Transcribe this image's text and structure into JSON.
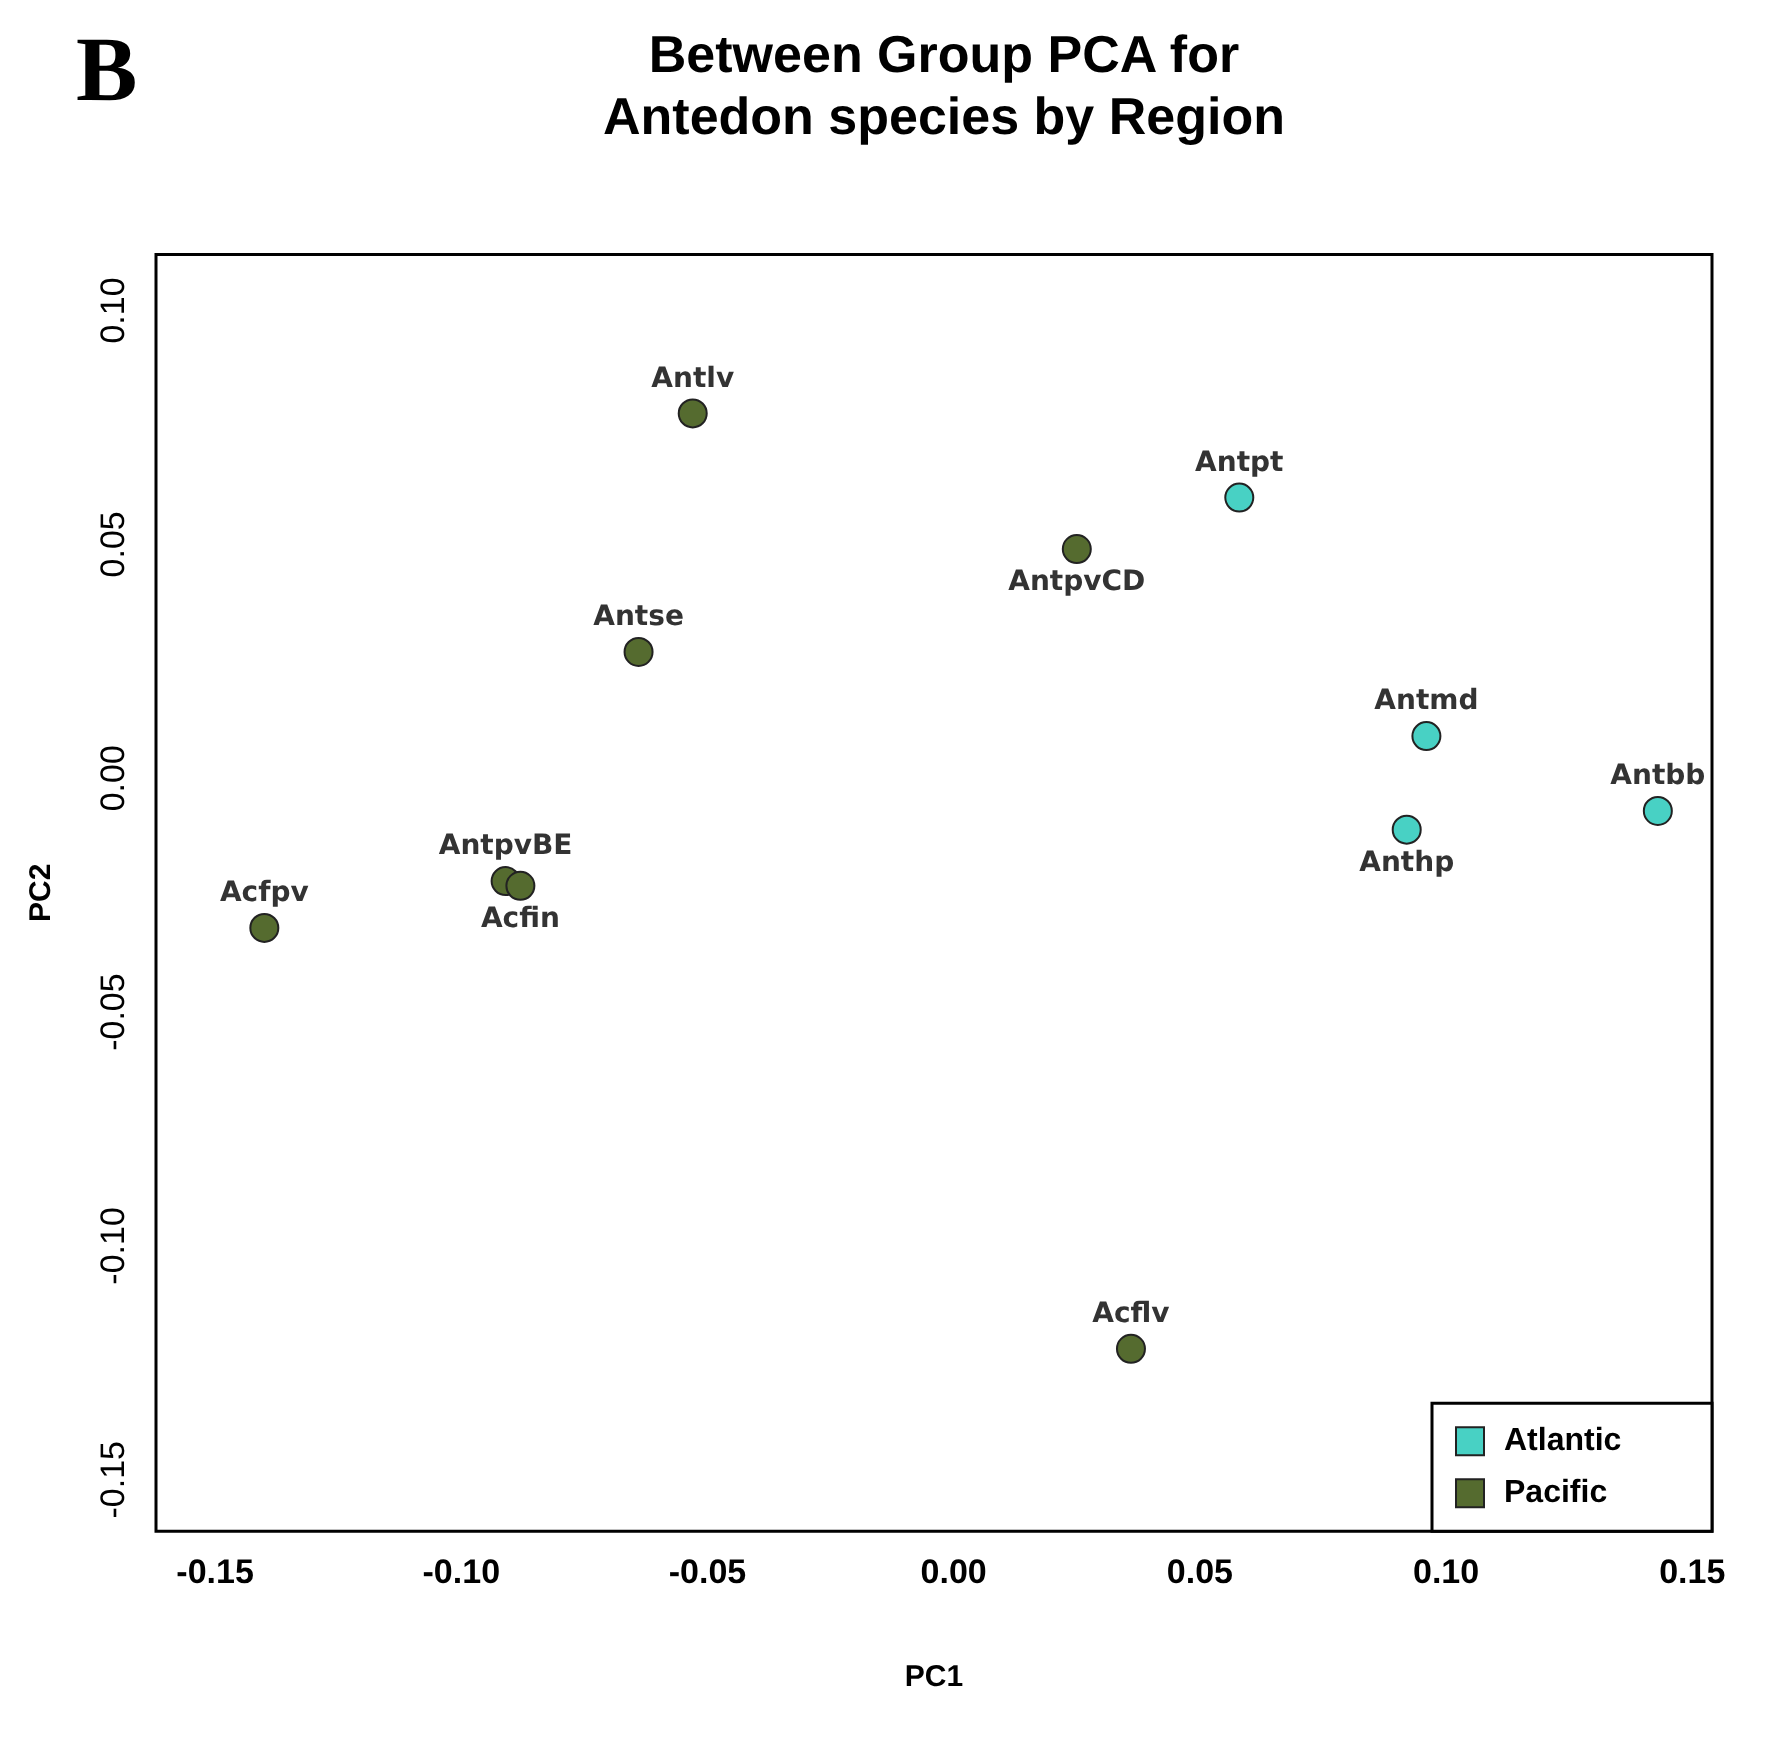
{
  "chart_data": {
    "type": "scatter",
    "title": "Between Group PCA for\nAntedon species by Region",
    "xlabel": "PC1",
    "ylabel": "PC2",
    "xlim": [
      -0.162,
      0.154
    ],
    "ylim": [
      -0.161,
      0.112
    ],
    "xticks": [
      {
        "value": -0.15,
        "label": "-0.15"
      },
      {
        "value": -0.1,
        "label": "-0.10"
      },
      {
        "value": -0.05,
        "label": "-0.05"
      },
      {
        "value": 0,
        "label": "0.00"
      },
      {
        "value": 0.05,
        "label": "0.05"
      },
      {
        "value": 0.1,
        "label": "0.10"
      },
      {
        "value": 0.15,
        "label": "0.15"
      }
    ],
    "yticks": [
      {
        "value": -0.15,
        "label": "-0.15"
      },
      {
        "value": -0.1,
        "label": "-0.10"
      },
      {
        "value": -0.05,
        "label": "-0.05"
      },
      {
        "value": 0,
        "label": "0.00"
      },
      {
        "value": 0.05,
        "label": "0.05"
      },
      {
        "value": 0.1,
        "label": "0.10"
      }
    ],
    "grid": false,
    "legend": "bottom right",
    "marker": "circle",
    "series": [
      {
        "name": "Atlantic",
        "color": "#48d1c4",
        "x": [
          0.058,
          0.096,
          0.143,
          0.092
        ],
        "values": [
          0.06,
          0.009,
          -0.007,
          -0.011
        ]
      },
      {
        "name": "Pacific",
        "color": "#556b2f",
        "x": [
          -0.053,
          0.025,
          -0.064,
          -0.091,
          -0.088,
          -0.14,
          0.036
        ],
        "values": [
          0.078,
          0.049,
          0.027,
          -0.022,
          -0.023,
          -0.032,
          -0.122
        ]
      }
    ],
    "annotations": [
      "B",
      {
        "text": "Antpt",
        "x": 0.058,
        "y": 0.06
      },
      {
        "text": "Antmd",
        "x": 0.096,
        "y": 0.009
      },
      {
        "text": "Antbb",
        "x": 0.143,
        "y": -0.007
      },
      {
        "text": "Anthp",
        "x": 0.092,
        "y": -0.011
      },
      {
        "text": "Antlv",
        "x": -0.053,
        "y": 0.078
      },
      {
        "text": "AntpvCD",
        "x": 0.025,
        "y": 0.049
      },
      {
        "text": "Antse",
        "x": -0.064,
        "y": 0.027
      },
      {
        "text": "AntpvBE",
        "x": -0.091,
        "y": -0.022
      },
      {
        "text": "Acfin",
        "x": -0.088,
        "y": -0.023
      },
      {
        "text": "Acfpv",
        "x": -0.14,
        "y": -0.032
      },
      {
        "text": "Acflv",
        "x": 0.036,
        "y": -0.122
      }
    ]
  }
}
